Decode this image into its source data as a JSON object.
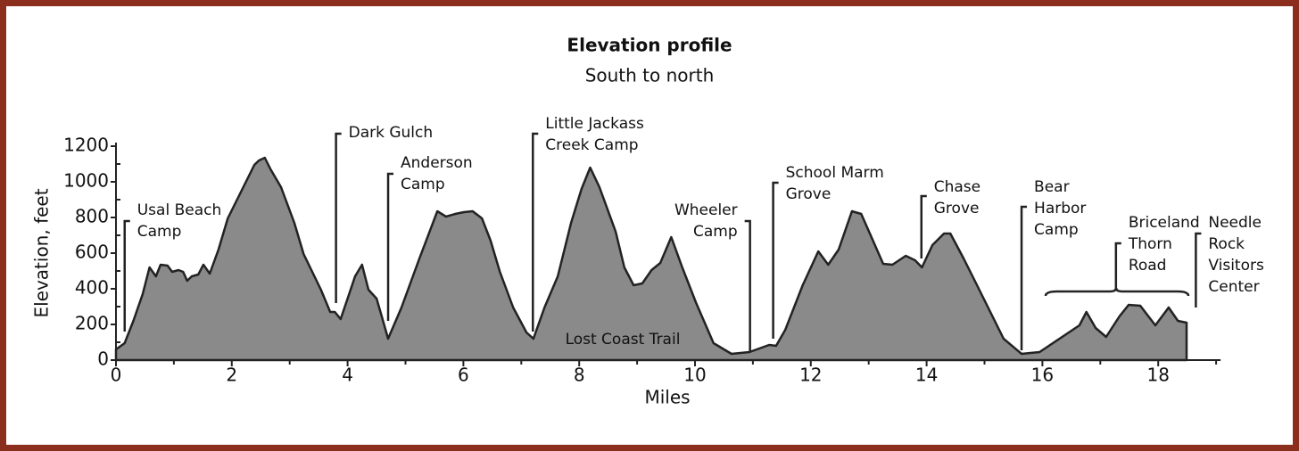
{
  "chart_data": {
    "type": "area",
    "title": "Elevation profile",
    "subtitle": "South to north",
    "xlabel": "Miles",
    "ylabel": "Elevation, feet",
    "xlim": [
      0,
      19
    ],
    "ylim": [
      0,
      1200
    ],
    "xticks": [
      0,
      2,
      4,
      6,
      8,
      10,
      12,
      14,
      16,
      18
    ],
    "xminor_ticks": [
      1,
      3,
      5,
      7,
      9,
      11,
      13,
      15,
      17,
      19
    ],
    "yticks": [
      0,
      200,
      400,
      600,
      800,
      1000,
      1200
    ],
    "yminor_ticks": [
      100,
      300,
      500,
      700,
      900,
      1100
    ],
    "series": [
      {
        "color": "#8a8a8a",
        "x": [
          0,
          0.15,
          0.3,
          0.46,
          0.58,
          0.69,
          0.77,
          0.89,
          0.97,
          1.08,
          1.16,
          1.23,
          1.31,
          1.42,
          1.51,
          1.62,
          1.77,
          1.93,
          2.16,
          2.39,
          2.47,
          2.57,
          2.67,
          2.85,
          3.08,
          3.24,
          3.39,
          3.54,
          3.7,
          3.78,
          3.88,
          4.0,
          4.13,
          4.25,
          4.36,
          4.5,
          4.59,
          4.7,
          4.93,
          5.24,
          5.55,
          5.7,
          5.86,
          6.01,
          6.16,
          6.32,
          6.47,
          6.63,
          6.86,
          7.09,
          7.21,
          7.4,
          7.63,
          7.86,
          8.04,
          8.19,
          8.35,
          8.63,
          8.78,
          8.94,
          9.09,
          9.25,
          9.4,
          9.59,
          9.78,
          10.02,
          10.32,
          10.63,
          10.94,
          11.28,
          11.4,
          11.56,
          11.86,
          12.13,
          12.3,
          12.48,
          12.71,
          12.87,
          13.02,
          13.25,
          13.41,
          13.64,
          13.8,
          13.92,
          14.1,
          14.3,
          14.41,
          14.64,
          14.87,
          15.1,
          15.33,
          15.64,
          15.95,
          16.18,
          16.41,
          16.64,
          16.76,
          16.92,
          17.1,
          17.33,
          17.49,
          17.69,
          17.95,
          18.18,
          18.34,
          18.49
        ],
        "values": [
          60,
          95,
          220,
          370,
          520,
          470,
          535,
          530,
          495,
          505,
          495,
          445,
          470,
          480,
          535,
          485,
          620,
          795,
          945,
          1095,
          1120,
          1135,
          1070,
          970,
          770,
          595,
          495,
          395,
          270,
          270,
          230,
          345,
          470,
          535,
          395,
          345,
          245,
          120,
          295,
          570,
          835,
          805,
          820,
          830,
          835,
          795,
          670,
          495,
          295,
          155,
          120,
          295,
          470,
          770,
          960,
          1080,
          970,
          720,
          520,
          420,
          430,
          505,
          545,
          690,
          520,
          320,
          95,
          35,
          45,
          85,
          80,
          170,
          420,
          610,
          535,
          620,
          835,
          820,
          710,
          540,
          535,
          585,
          560,
          520,
          645,
          710,
          710,
          570,
          420,
          270,
          120,
          35,
          45,
          95,
          145,
          195,
          270,
          180,
          130,
          245,
          310,
          305,
          195,
          295,
          220,
          210
        ]
      }
    ],
    "trail_label": "Lost Coast Trail",
    "annotations": [
      {
        "x": 0.15,
        "lines": [
          "Usal Beach",
          "Camp"
        ]
      },
      {
        "x": 3.8,
        "lines": [
          "Dark Gulch"
        ]
      },
      {
        "x": 4.7,
        "lines": [
          "Anderson",
          "Camp"
        ]
      },
      {
        "x": 7.2,
        "lines": [
          "Little Jackass",
          "Creek Camp"
        ]
      },
      {
        "x": 10.95,
        "lines": [
          "Wheeler",
          "Camp"
        ]
      },
      {
        "x": 11.35,
        "lines": [
          "School Marm",
          "Grove"
        ]
      },
      {
        "x": 13.91,
        "lines": [
          "Chase",
          "Grove"
        ]
      },
      {
        "x": 15.64,
        "lines": [
          "Bear",
          "Harbor",
          "Camp"
        ]
      },
      {
        "x": 17.27,
        "lines": [
          "Briceland",
          "Thorn",
          "Road"
        ]
      },
      {
        "x": 18.65,
        "lines": [
          "Needle",
          "Rock",
          "Visitors",
          "Center"
        ]
      }
    ]
  }
}
